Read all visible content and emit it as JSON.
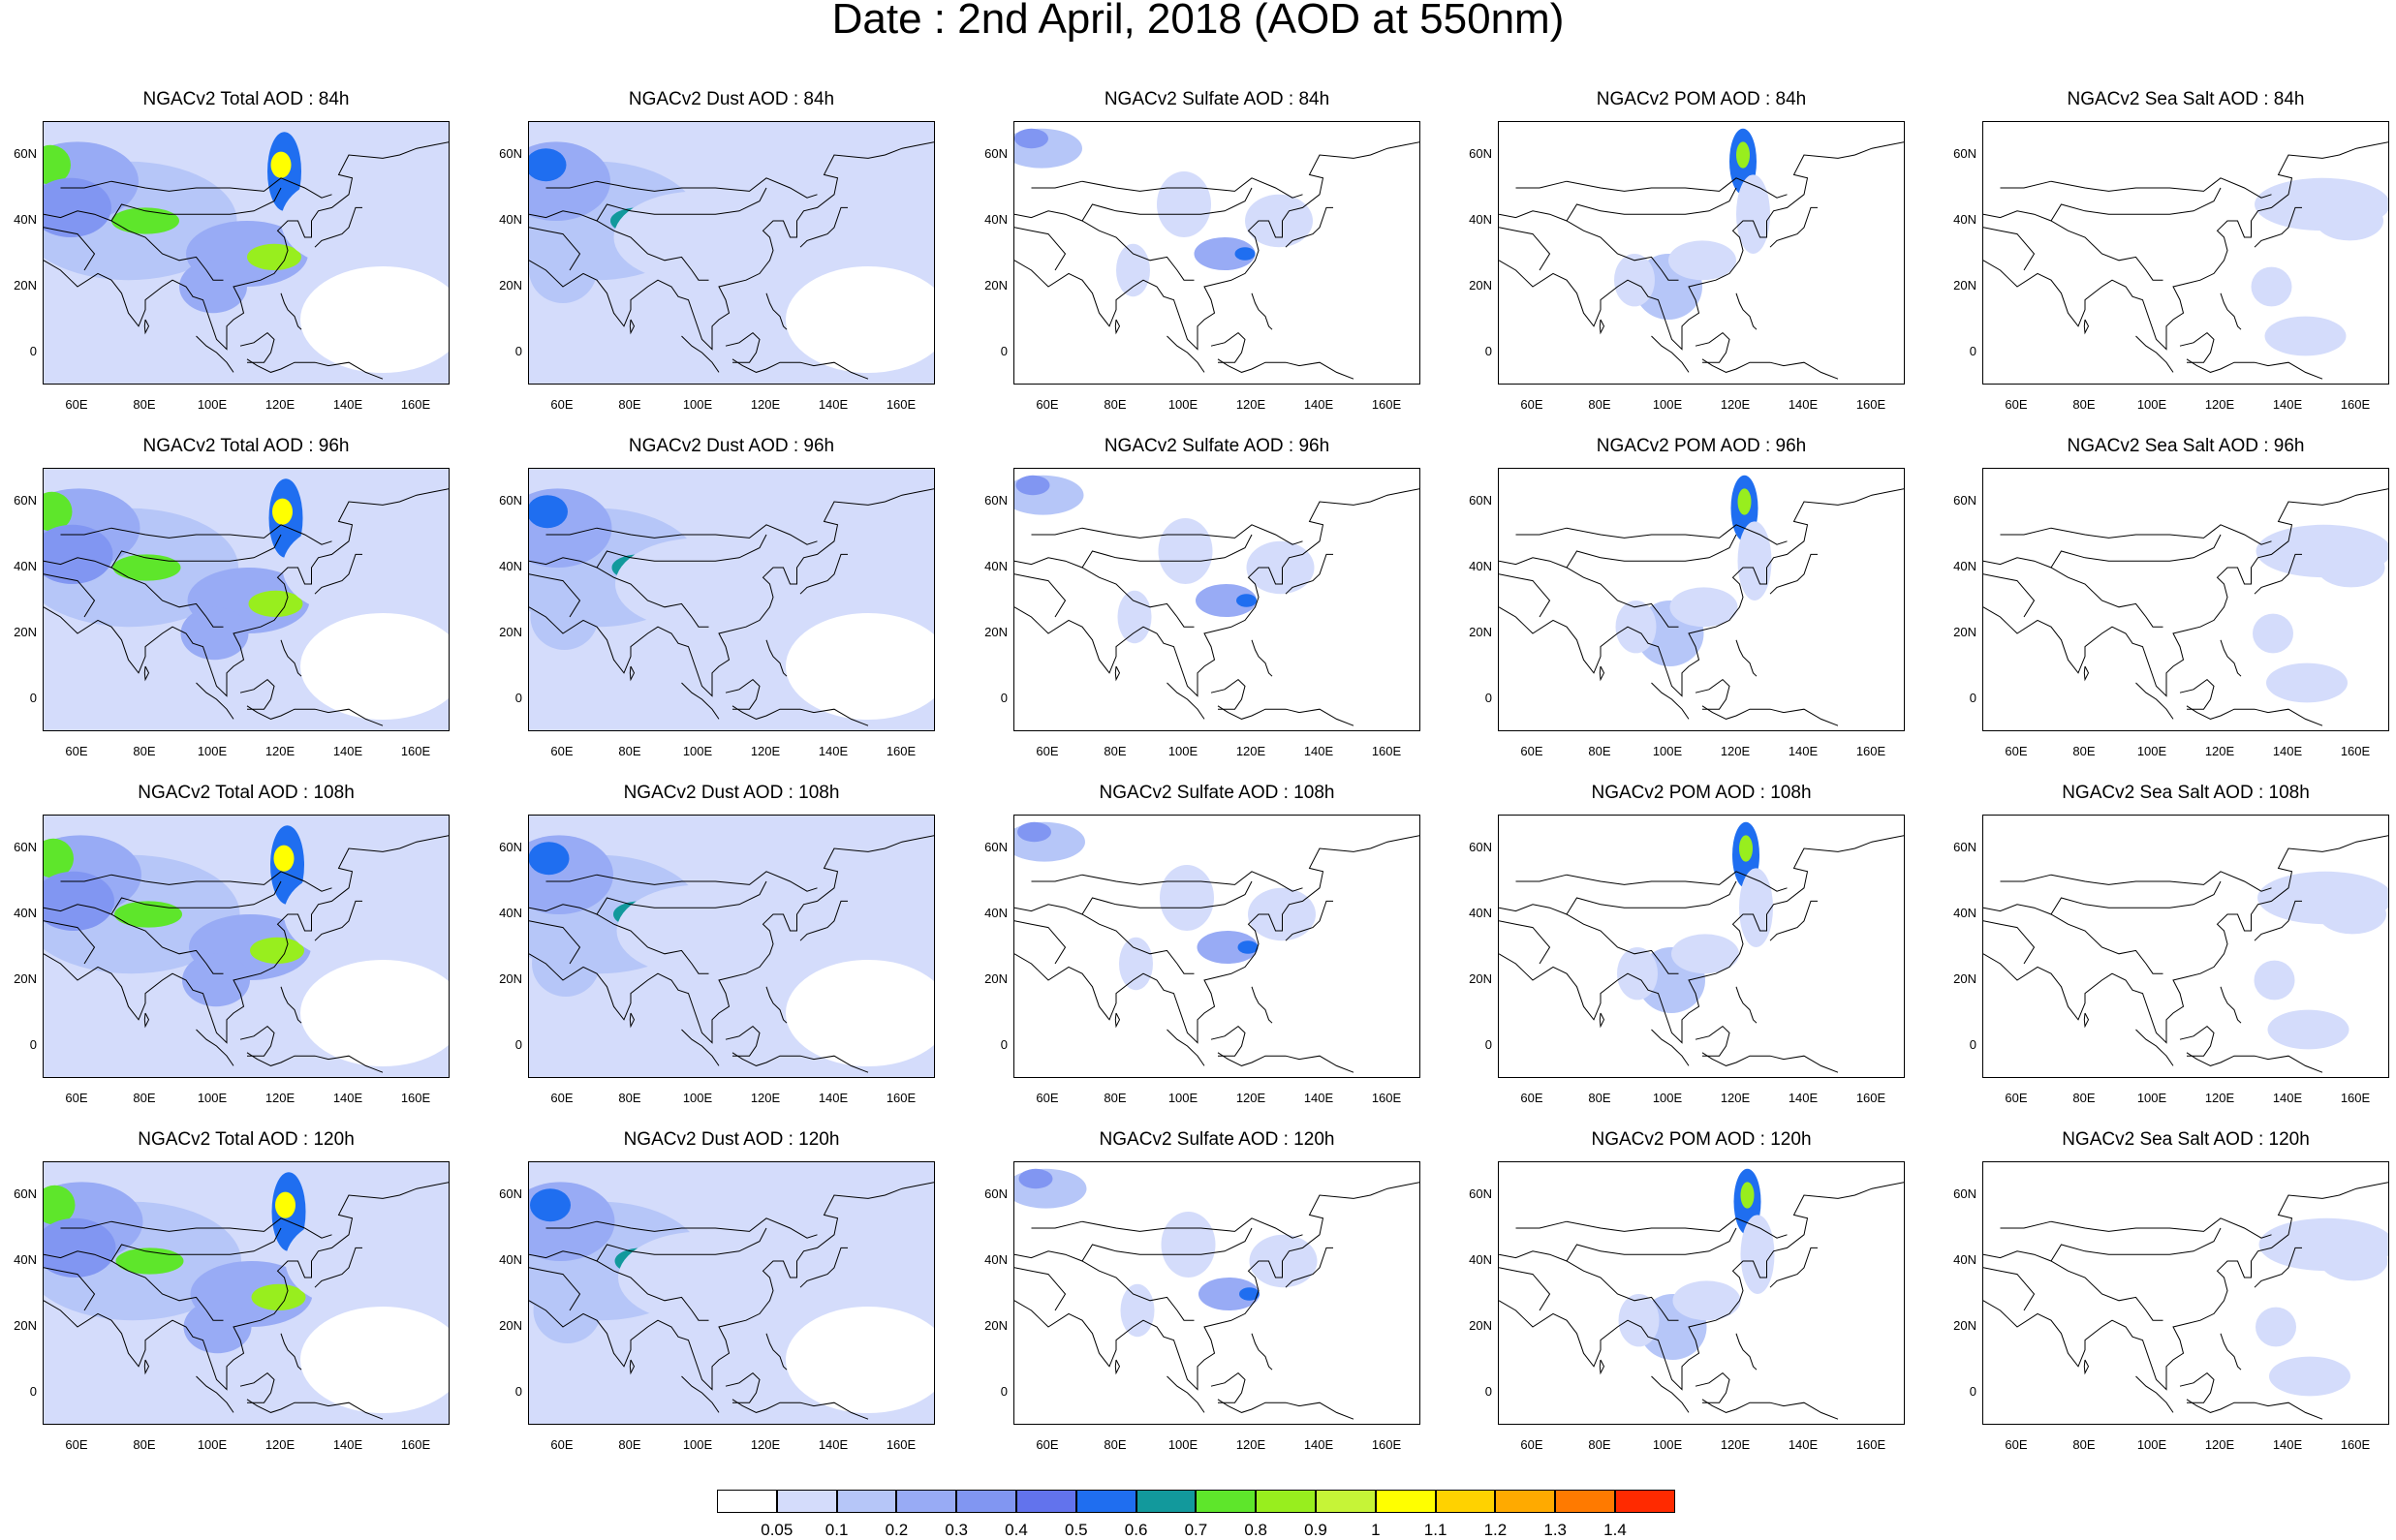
{
  "title": "Date : 2nd April, 2018 (AOD at 550nm)",
  "lat_labels": [
    "60N",
    "40N",
    "20N",
    "0"
  ],
  "lon_labels": [
    "60E",
    "80E",
    "100E",
    "120E",
    "140E",
    "160E"
  ],
  "panels": [
    {
      "title": "NGACv2 Total AOD : 84h",
      "species": "total"
    },
    {
      "title": "NGACv2 Dust AOD : 84h",
      "species": "dust"
    },
    {
      "title": "NGACv2 Sulfate AOD : 84h",
      "species": "sulfate"
    },
    {
      "title": "NGACv2 POM AOD : 84h",
      "species": "pom"
    },
    {
      "title": "NGACv2 Sea Salt AOD : 84h",
      "species": "seasalt"
    },
    {
      "title": "NGACv2 Total AOD : 96h",
      "species": "total"
    },
    {
      "title": "NGACv2 Dust AOD : 96h",
      "species": "dust"
    },
    {
      "title": "NGACv2 Sulfate AOD : 96h",
      "species": "sulfate"
    },
    {
      "title": "NGACv2 POM AOD : 96h",
      "species": "pom"
    },
    {
      "title": "NGACv2 Sea Salt AOD : 96h",
      "species": "seasalt"
    },
    {
      "title": "NGACv2 Total AOD : 108h",
      "species": "total"
    },
    {
      "title": "NGACv2 Dust AOD : 108h",
      "species": "dust"
    },
    {
      "title": "NGACv2 Sulfate AOD : 108h",
      "species": "sulfate"
    },
    {
      "title": "NGACv2 POM AOD : 108h",
      "species": "pom"
    },
    {
      "title": "NGACv2 Sea Salt AOD : 108h",
      "species": "seasalt"
    },
    {
      "title": "NGACv2 Total AOD : 120h",
      "species": "total"
    },
    {
      "title": "NGACv2 Dust AOD : 120h",
      "species": "dust"
    },
    {
      "title": "NGACv2 Sulfate AOD : 120h",
      "species": "sulfate"
    },
    {
      "title": "NGACv2 POM AOD : 120h",
      "species": "pom"
    },
    {
      "title": "NGACv2 Sea Salt  AOD : 120h",
      "species": "seasalt"
    }
  ],
  "colorbar": {
    "colors": [
      "#ffffff",
      "#d4dcfb",
      "#b6c6f8",
      "#98abf5",
      "#8196f2",
      "#6273ed",
      "#1f6ef0",
      "#12999c",
      "#5ee62b",
      "#98ee1e",
      "#c6f437",
      "#ffff00",
      "#ffd200",
      "#ffaa00",
      "#ff7a00",
      "#ff2a00"
    ],
    "labels": [
      "0.05",
      "0.1",
      "0.2",
      "0.3",
      "0.4",
      "0.5",
      "0.6",
      "0.7",
      "0.8",
      "0.9",
      "1",
      "1.1",
      "1.2",
      "1.3",
      "1.4"
    ]
  }
}
